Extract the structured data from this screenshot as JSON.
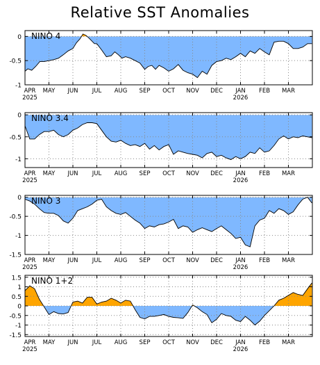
{
  "title": "Relative SST Anomalies",
  "colors": {
    "negative_fill": "#7fb8ff",
    "positive_fill": "#ffa500",
    "line": "#000000",
    "grid": "#888888"
  },
  "x_axis": {
    "months": [
      "APR",
      "MAY",
      "JUN",
      "JUL",
      "AUG",
      "SEP",
      "OCT",
      "NOV",
      "DEC",
      "JAN",
      "FEB",
      "MAR"
    ],
    "years": [
      {
        "month_index": 0,
        "label": "2025"
      },
      {
        "month_index": 9,
        "label": "2026"
      }
    ]
  },
  "chart_data": [
    {
      "type": "area",
      "title": "NINO 4",
      "ylim": [
        -1,
        0.12
      ],
      "yticks": [
        0,
        -0.5,
        -1
      ],
      "ytick_labels": [
        "0",
        "-0.5",
        "-1"
      ],
      "grid": true,
      "show_years": true,
      "x_months": [
        0.0,
        0.12,
        0.28,
        0.45,
        0.62,
        0.8,
        1.0,
        1.2,
        1.4,
        1.6,
        1.8,
        2.0,
        2.15,
        2.3,
        2.42,
        2.55,
        2.7,
        2.9,
        3.0,
        3.2,
        3.4,
        3.6,
        3.75,
        3.9,
        4.05,
        4.2,
        4.4,
        4.6,
        4.8,
        5.0,
        5.15,
        5.3,
        5.45,
        5.6,
        5.8,
        6.0,
        6.2,
        6.4,
        6.6,
        6.8,
        7.0,
        7.2,
        7.4,
        7.6,
        7.8,
        8.0,
        8.2,
        8.4,
        8.6,
        8.8,
        9.0,
        9.2,
        9.4,
        9.6,
        9.8,
        10.0,
        10.2,
        10.4,
        10.6,
        10.8,
        11.0,
        11.2,
        11.4,
        11.6,
        11.8,
        11.98
      ],
      "values": [
        -0.72,
        -0.67,
        -0.7,
        -0.62,
        -0.52,
        -0.52,
        -0.5,
        -0.48,
        -0.45,
        -0.38,
        -0.3,
        -0.25,
        -0.13,
        -0.05,
        0.05,
        0.02,
        -0.05,
        -0.15,
        -0.15,
        -0.28,
        -0.42,
        -0.4,
        -0.32,
        -0.38,
        -0.45,
        -0.42,
        -0.45,
        -0.5,
        -0.55,
        -0.68,
        -0.62,
        -0.6,
        -0.68,
        -0.6,
        -0.65,
        -0.72,
        -0.67,
        -0.58,
        -0.7,
        -0.75,
        -0.78,
        -0.85,
        -0.72,
        -0.78,
        -0.6,
        -0.52,
        -0.5,
        -0.45,
        -0.48,
        -0.42,
        -0.35,
        -0.42,
        -0.3,
        -0.35,
        -0.25,
        -0.32,
        -0.38,
        -0.12,
        -0.1,
        -0.1,
        -0.15,
        -0.25,
        -0.25,
        -0.22,
        -0.15,
        -0.15
      ]
    },
    {
      "type": "area",
      "title": "NINO 3.4",
      "ylim": [
        -1.2,
        0.05
      ],
      "yticks": [
        0,
        -0.5,
        -1
      ],
      "ytick_labels": [
        "0",
        "-0.5",
        "-1"
      ],
      "grid": true,
      "show_years": true,
      "x_months": [
        0.0,
        0.2,
        0.4,
        0.6,
        0.8,
        1.0,
        1.2,
        1.4,
        1.6,
        1.8,
        2.0,
        2.2,
        2.4,
        2.6,
        2.8,
        3.0,
        3.2,
        3.4,
        3.6,
        3.8,
        4.0,
        4.2,
        4.4,
        4.6,
        4.8,
        5.0,
        5.2,
        5.4,
        5.6,
        5.8,
        6.0,
        6.2,
        6.4,
        6.6,
        6.8,
        7.0,
        7.2,
        7.4,
        7.6,
        7.8,
        8.0,
        8.2,
        8.4,
        8.6,
        8.8,
        9.0,
        9.2,
        9.4,
        9.6,
        9.8,
        10.0,
        10.2,
        10.4,
        10.6,
        10.8,
        11.0,
        11.2,
        11.4,
        11.6,
        11.8,
        11.98
      ],
      "values": [
        -0.25,
        -0.55,
        -0.55,
        -0.45,
        -0.38,
        -0.38,
        -0.35,
        -0.45,
        -0.5,
        -0.45,
        -0.35,
        -0.3,
        -0.22,
        -0.18,
        -0.18,
        -0.2,
        -0.35,
        -0.5,
        -0.6,
        -0.62,
        -0.58,
        -0.65,
        -0.7,
        -0.68,
        -0.72,
        -0.65,
        -0.78,
        -0.7,
        -0.8,
        -0.72,
        -0.68,
        -0.9,
        -0.82,
        -0.85,
        -0.88,
        -0.9,
        -0.92,
        -0.98,
        -0.88,
        -0.85,
        -0.95,
        -0.92,
        -0.98,
        -1.02,
        -0.95,
        -1.0,
        -0.95,
        -0.85,
        -0.88,
        -0.75,
        -0.85,
        -0.82,
        -0.7,
        -0.55,
        -0.48,
        -0.55,
        -0.5,
        -0.52,
        -0.48,
        -0.5,
        -0.52
      ]
    },
    {
      "type": "area",
      "title": "NINO 3",
      "ylim": [
        -1.5,
        0.05
      ],
      "yticks": [
        0,
        -0.5,
        -1,
        -1.5
      ],
      "ytick_labels": [
        "0",
        "-0.5",
        "-1",
        "-1.5"
      ],
      "grid": true,
      "show_years": true,
      "x_months": [
        0.0,
        0.2,
        0.4,
        0.6,
        0.8,
        1.0,
        1.2,
        1.4,
        1.6,
        1.8,
        2.0,
        2.2,
        2.4,
        2.6,
        2.8,
        3.0,
        3.2,
        3.4,
        3.6,
        3.8,
        4.0,
        4.2,
        4.4,
        4.6,
        4.8,
        5.0,
        5.2,
        5.4,
        5.6,
        5.8,
        6.0,
        6.2,
        6.4,
        6.6,
        6.8,
        7.0,
        7.2,
        7.4,
        7.6,
        7.8,
        8.0,
        8.2,
        8.4,
        8.6,
        8.8,
        9.0,
        9.2,
        9.4,
        9.6,
        9.8,
        10.0,
        10.2,
        10.4,
        10.6,
        10.8,
        11.0,
        11.2,
        11.4,
        11.6,
        11.8,
        11.98
      ],
      "values": [
        -0.05,
        -0.1,
        -0.18,
        -0.3,
        -0.4,
        -0.42,
        -0.42,
        -0.48,
        -0.62,
        -0.68,
        -0.55,
        -0.35,
        -0.3,
        -0.25,
        -0.18,
        -0.08,
        -0.05,
        -0.25,
        -0.35,
        -0.42,
        -0.45,
        -0.4,
        -0.5,
        -0.6,
        -0.68,
        -0.82,
        -0.75,
        -0.78,
        -0.72,
        -0.7,
        -0.65,
        -0.58,
        -0.82,
        -0.75,
        -0.78,
        -0.92,
        -0.85,
        -0.8,
        -0.85,
        -0.9,
        -0.82,
        -0.75,
        -0.85,
        -0.95,
        -1.08,
        -1.05,
        -1.25,
        -1.3,
        -0.75,
        -0.6,
        -0.55,
        -0.35,
        -0.42,
        -0.3,
        -0.35,
        -0.45,
        -0.38,
        -0.2,
        -0.05,
        0.0,
        -0.15
      ]
    },
    {
      "type": "area",
      "title": "NINO 1+2",
      "ylim": [
        -1.6,
        1.6
      ],
      "yticks": [
        1.5,
        1,
        0.5,
        0,
        -0.5,
        -1,
        -1.5
      ],
      "ytick_labels": [
        "1.5",
        "1",
        "0.5",
        "0",
        "-0.5",
        "-1",
        "-1.5"
      ],
      "grid": true,
      "show_years": true,
      "x_months": [
        0.0,
        0.2,
        0.4,
        0.6,
        0.8,
        1.0,
        1.2,
        1.4,
        1.6,
        1.8,
        2.0,
        2.2,
        2.4,
        2.6,
        2.8,
        3.0,
        3.2,
        3.4,
        3.6,
        3.8,
        4.0,
        4.2,
        4.4,
        4.6,
        4.8,
        5.0,
        5.2,
        5.4,
        5.6,
        5.8,
        6.0,
        6.2,
        6.4,
        6.6,
        6.8,
        7.0,
        7.2,
        7.4,
        7.6,
        7.8,
        8.0,
        8.2,
        8.4,
        8.6,
        8.8,
        9.0,
        9.2,
        9.4,
        9.6,
        9.8,
        10.0,
        10.2,
        10.4,
        10.6,
        10.8,
        11.0,
        11.2,
        11.4,
        11.6,
        11.8,
        11.98
      ],
      "values": [
        0.8,
        1.05,
        0.9,
        0.35,
        -0.05,
        -0.45,
        -0.3,
        -0.4,
        -0.42,
        -0.35,
        0.2,
        0.25,
        0.15,
        0.45,
        0.45,
        0.1,
        0.2,
        0.25,
        0.4,
        0.3,
        0.15,
        0.3,
        0.25,
        -0.2,
        -0.6,
        -0.68,
        -0.55,
        -0.55,
        -0.5,
        -0.45,
        -0.55,
        -0.6,
        -0.62,
        -0.65,
        -0.35,
        0.05,
        -0.1,
        -0.3,
        -0.45,
        -0.88,
        -0.7,
        -0.4,
        -0.5,
        -0.55,
        -0.75,
        -0.82,
        -0.55,
        -0.75,
        -1.0,
        -0.8,
        -0.5,
        -0.25,
        0.0,
        0.3,
        0.4,
        0.55,
        0.7,
        0.6,
        0.55,
        0.9,
        1.2
      ]
    }
  ]
}
